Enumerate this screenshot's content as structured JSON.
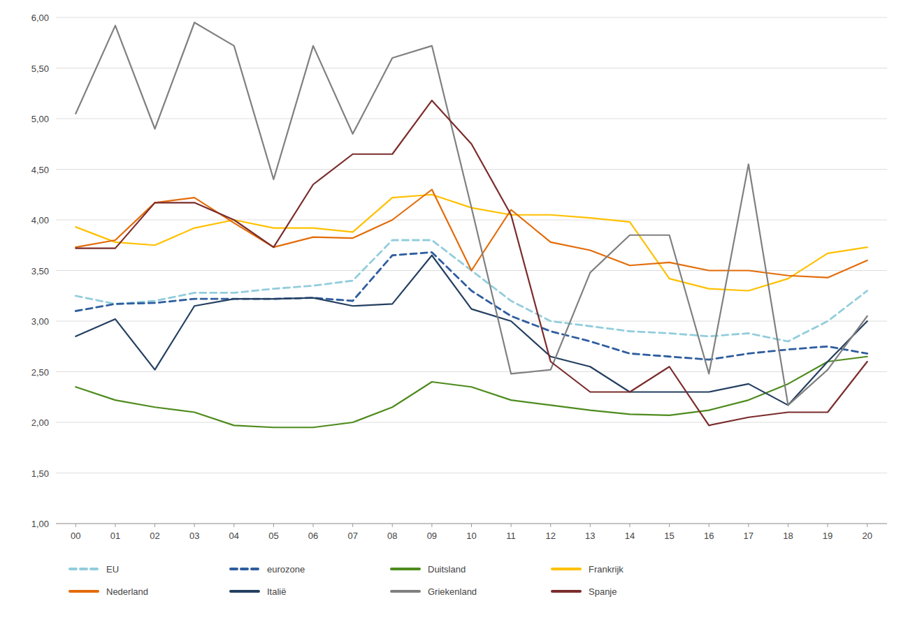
{
  "chart_data": {
    "type": "line",
    "categories": [
      "00",
      "01",
      "02",
      "03",
      "04",
      "05",
      "06",
      "07",
      "08",
      "09",
      "10",
      "11",
      "12",
      "13",
      "14",
      "15",
      "16",
      "17",
      "18",
      "19",
      "20"
    ],
    "series": [
      {
        "name": "EU",
        "color": "#92CDDC",
        "line_style": "dashed",
        "values": [
          3.25,
          3.17,
          3.2,
          3.28,
          3.28,
          3.32,
          3.35,
          3.4,
          3.8,
          3.8,
          3.5,
          3.2,
          3.0,
          2.95,
          2.9,
          2.88,
          2.85,
          2.88,
          2.8,
          3.0,
          3.3
        ]
      },
      {
        "name": "eurozone",
        "color": "#2E5D9F",
        "line_style": "dashed",
        "values": [
          3.1,
          3.17,
          3.18,
          3.22,
          3.22,
          3.22,
          3.23,
          3.2,
          3.65,
          3.68,
          3.3,
          3.05,
          2.9,
          2.8,
          2.68,
          2.65,
          2.62,
          2.68,
          2.72,
          2.75,
          2.68
        ]
      },
      {
        "name": "Duitsland",
        "color": "#4E8B1D",
        "line_style": "solid",
        "values": [
          2.35,
          2.22,
          2.15,
          2.1,
          1.97,
          1.95,
          1.95,
          2.0,
          2.15,
          2.4,
          2.35,
          2.22,
          2.17,
          2.12,
          2.08,
          2.07,
          2.12,
          2.22,
          2.38,
          2.6,
          2.65
        ]
      },
      {
        "name": "Frankrijk",
        "color": "#FFC000",
        "line_style": "solid",
        "values": [
          3.93,
          3.78,
          3.75,
          3.92,
          4.0,
          3.92,
          3.92,
          3.88,
          4.22,
          4.25,
          4.12,
          4.05,
          4.05,
          4.02,
          3.98,
          3.42,
          3.32,
          3.3,
          3.42,
          3.67,
          3.73
        ]
      },
      {
        "name": "Nederland",
        "color": "#E36C09",
        "line_style": "solid",
        "values": [
          3.73,
          3.8,
          4.17,
          4.22,
          3.97,
          3.73,
          3.83,
          3.82,
          4.0,
          4.3,
          3.5,
          4.1,
          3.78,
          3.7,
          3.55,
          3.58,
          3.5,
          3.5,
          3.45,
          3.43,
          3.6
        ]
      },
      {
        "name": "Italië",
        "color": "#243F60",
        "line_style": "solid",
        "values": [
          2.85,
          3.02,
          2.52,
          3.15,
          3.22,
          3.22,
          3.23,
          3.15,
          3.17,
          3.65,
          3.12,
          3.0,
          2.65,
          2.55,
          2.3,
          2.3,
          2.3,
          2.38,
          2.17,
          2.6,
          3.0
        ]
      },
      {
        "name": "Griekenland",
        "color": "#808080",
        "line_style": "solid",
        "values": [
          5.05,
          5.92,
          4.9,
          5.95,
          5.72,
          4.4,
          5.72,
          4.85,
          5.6,
          5.72,
          4.12,
          2.48,
          2.52,
          3.48,
          3.85,
          3.85,
          2.48,
          4.55,
          2.17,
          2.52,
          3.05
        ]
      },
      {
        "name": "Spanje",
        "color": "#7B2C2C",
        "line_style": "solid",
        "values": [
          3.72,
          3.72,
          4.17,
          4.17,
          4.0,
          3.73,
          4.35,
          4.65,
          4.65,
          5.18,
          4.75,
          4.05,
          2.6,
          2.3,
          2.3,
          2.55,
          1.97,
          2.05,
          2.1,
          2.1,
          2.6
        ]
      }
    ],
    "ylim": [
      1.0,
      6.0
    ],
    "yticks": [
      {
        "value": 1.0,
        "label": "1,00"
      },
      {
        "value": 1.5,
        "label": "1,50"
      },
      {
        "value": 2.0,
        "label": "2,00"
      },
      {
        "value": 2.5,
        "label": "2,50"
      },
      {
        "value": 3.0,
        "label": "3,00"
      },
      {
        "value": 3.5,
        "label": "3,50"
      },
      {
        "value": 4.0,
        "label": "4,00"
      },
      {
        "value": 4.5,
        "label": "4,50"
      },
      {
        "value": 5.0,
        "label": "5,00"
      },
      {
        "value": 5.5,
        "label": "5,50"
      },
      {
        "value": 6.0,
        "label": "6,00"
      }
    ],
    "grid": true,
    "legend": "bottom"
  }
}
